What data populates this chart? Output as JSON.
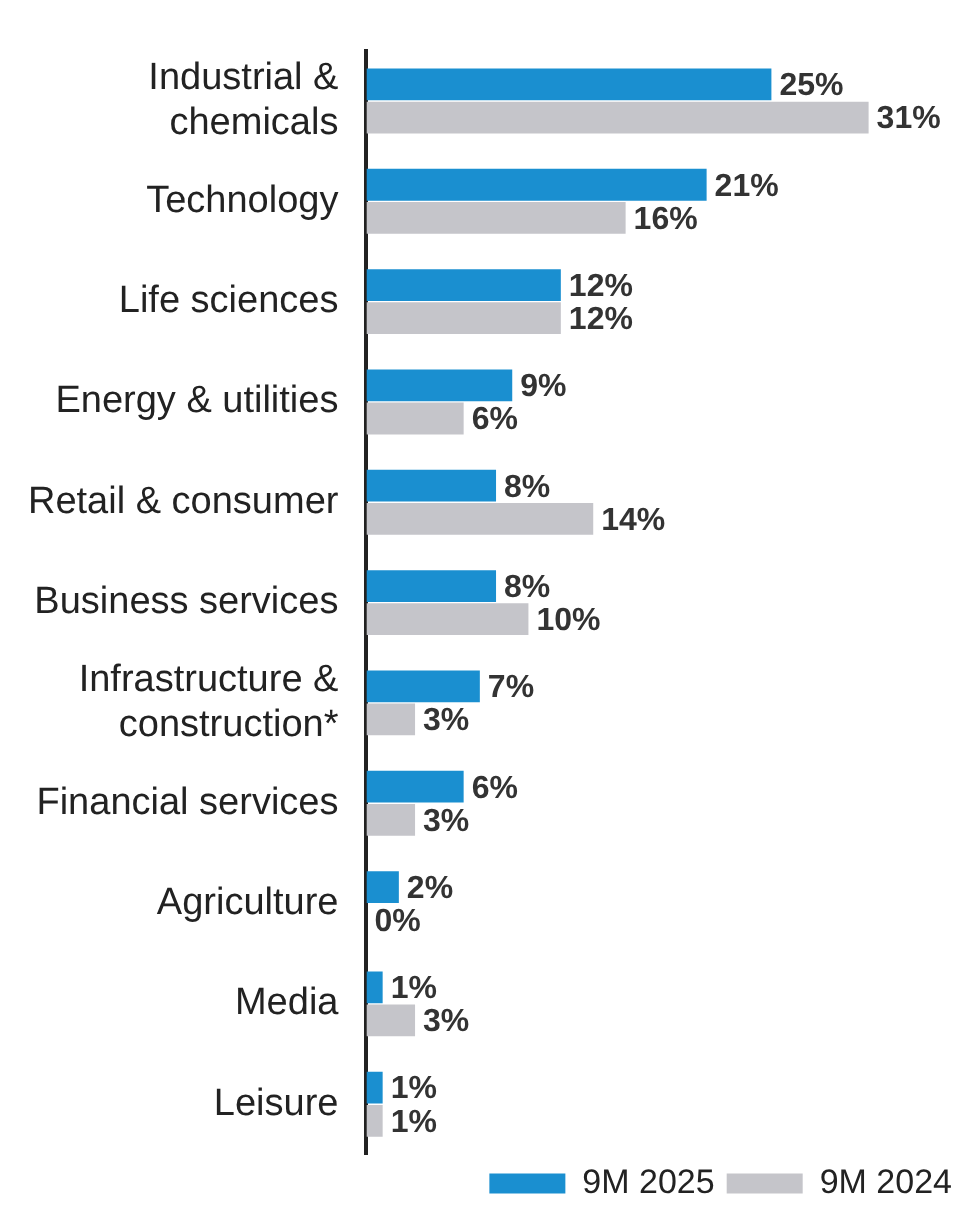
{
  "chart_data": {
    "type": "bar",
    "orientation": "horizontal",
    "categories": [
      "Industrial &\nchemicals",
      "Technology",
      "Life sciences",
      "Energy & utilities",
      "Retail & consumer",
      "Business services",
      "Infrastructure &\nconstruction*",
      "Financial services",
      "Agriculture",
      "Media",
      "Leisure"
    ],
    "series": [
      {
        "name": "9M 2025",
        "color": "#1a8fd0",
        "values": [
          25,
          21,
          12,
          9,
          8,
          8,
          7,
          6,
          2,
          1,
          1
        ],
        "value_labels": [
          "25%",
          "21%",
          "12%",
          "9%",
          "8%",
          "8%",
          "7%",
          "6%",
          "2%",
          "1%",
          "1%"
        ]
      },
      {
        "name": "9M 2024",
        "color": "#c5c5ca",
        "values": [
          31,
          16,
          12,
          6,
          14,
          10,
          3,
          3,
          0,
          3,
          1
        ],
        "value_labels": [
          "31%",
          "16%",
          "12%",
          "6%",
          "14%",
          "10%",
          "3%",
          "3%",
          "0%",
          "3%",
          "1%"
        ]
      }
    ],
    "legend": "bottom right"
  }
}
